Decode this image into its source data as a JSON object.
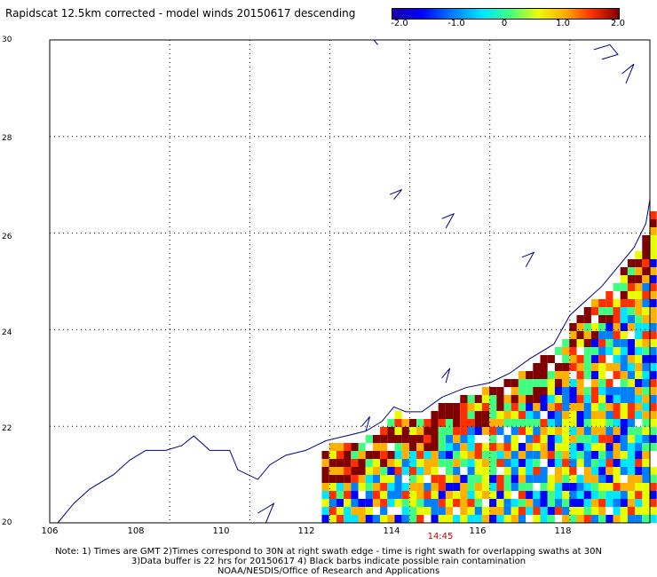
{
  "title": "Rapidscat 12.5km corrected - model winds 20150617 descending",
  "colorbar": {
    "ticks": [
      "-2.0",
      "-1.0",
      "0",
      "1.0",
      "2.0"
    ],
    "range": [
      -2.0,
      2.0
    ],
    "colors": [
      "#1a00a0",
      "#0000ff",
      "#0080ff",
      "#00e6ff",
      "#40ff80",
      "#e8ff00",
      "#ffb000",
      "#ff3000",
      "#800000"
    ]
  },
  "axes": {
    "x_ticks": [
      "106",
      "108",
      "110",
      "112",
      "114",
      "116",
      "118"
    ],
    "y_ticks": [
      "30",
      "28",
      "26",
      "24",
      "22",
      "20"
    ],
    "lon_range": [
      105,
      120
    ],
    "lat_range": [
      20,
      30
    ],
    "grid": true,
    "coast_color": "#000080"
  },
  "time_label": "14:45",
  "notes": [
    "Note: 1) Times are GMT 2)Times correspond to 30N at right swath edge - time is right swath for overlapping swaths at 30N",
    "3)Data buffer is 22 hrs for 20150617 4) Black barbs indicate possible rain contamination",
    "NOAA/NESDIS/Office of Research and Applications"
  ]
}
